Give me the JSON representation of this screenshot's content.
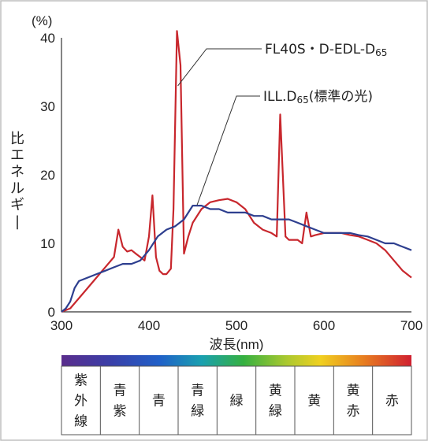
{
  "chart_data": {
    "type": "line",
    "y_unit": "(%)",
    "ylabel": "比エネルギー",
    "xlabel": "波長(nm)",
    "xlim": [
      300,
      700
    ],
    "ylim": [
      0,
      40
    ],
    "x_ticks": [
      "300",
      "400",
      "500",
      "600",
      "700"
    ],
    "y_ticks": [
      "0",
      "10",
      "20",
      "30",
      "40"
    ],
    "grid": false,
    "series": [
      {
        "name": "FL40S・D-EDL-D65",
        "color": "#c8272d",
        "x": [
          300,
          310,
          320,
          330,
          340,
          350,
          360,
          365,
          370,
          375,
          380,
          385,
          390,
          395,
          400,
          404,
          408,
          412,
          416,
          420,
          425,
          428,
          432,
          436,
          440,
          445,
          450,
          460,
          470,
          480,
          490,
          500,
          510,
          520,
          530,
          540,
          546,
          550,
          556,
          560,
          570,
          575,
          580,
          585,
          590,
          600,
          610,
          620,
          630,
          640,
          650,
          660,
          670,
          680,
          690,
          700
        ],
        "y": [
          0,
          0.5,
          2,
          3.5,
          5,
          6.5,
          8,
          12,
          9.5,
          8.8,
          9,
          8.5,
          8,
          7.5,
          11,
          17,
          8,
          6,
          5.5,
          5.5,
          6.3,
          15,
          41,
          36,
          8.5,
          11,
          13,
          15,
          16,
          16.3,
          16.5,
          16,
          15,
          13,
          12,
          11.5,
          11,
          28.8,
          11,
          10.5,
          10.5,
          10,
          14.5,
          11,
          11.2,
          11.5,
          11.5,
          11.5,
          11.2,
          11,
          10.5,
          10,
          9,
          7.5,
          6,
          5
        ]
      },
      {
        "name": "ILL.D65(標準の光)",
        "color": "#2e3f8f",
        "x": [
          300,
          305,
          310,
          315,
          320,
          330,
          340,
          350,
          360,
          370,
          380,
          390,
          400,
          410,
          420,
          430,
          440,
          450,
          460,
          470,
          480,
          490,
          500,
          510,
          520,
          530,
          540,
          550,
          560,
          570,
          580,
          590,
          600,
          610,
          620,
          630,
          640,
          650,
          660,
          670,
          680,
          690,
          700
        ],
        "y": [
          0,
          0.5,
          1.5,
          3.5,
          4.5,
          5,
          5.5,
          6,
          6.5,
          7,
          7,
          7.5,
          9,
          11,
          12,
          12.5,
          13.5,
          15.5,
          15.5,
          15,
          15,
          14.5,
          14.5,
          14.5,
          14,
          14,
          13.5,
          13.5,
          13.5,
          13,
          12.5,
          12,
          11.5,
          11.5,
          11.5,
          11.5,
          11.2,
          11,
          10.5,
          10,
          10,
          9.5,
          9
        ]
      }
    ],
    "annotations": [
      {
        "text": "FL40S・D-EDL-D",
        "sub": "65",
        "target": "FL40S・D-EDL-D65"
      },
      {
        "text": "ILL.D",
        "sub": "65",
        "tail": "(標準の光)",
        "target": "ILL.D65(標準の光)"
      }
    ],
    "color_bands": [
      {
        "label": "紫外線",
        "color": "#6b2f8c"
      },
      {
        "label": "青紫",
        "color": "#3a3fa8"
      },
      {
        "label": "青",
        "color": "#2060c8"
      },
      {
        "label": "青緑",
        "color": "#1aa0b0"
      },
      {
        "label": "緑",
        "color": "#35b040"
      },
      {
        "label": "黄緑",
        "color": "#a8c830"
      },
      {
        "label": "黄",
        "color": "#f0d020"
      },
      {
        "label": "黄赤",
        "color": "#e88020"
      },
      {
        "label": "赤",
        "color": "#d02030"
      }
    ]
  }
}
